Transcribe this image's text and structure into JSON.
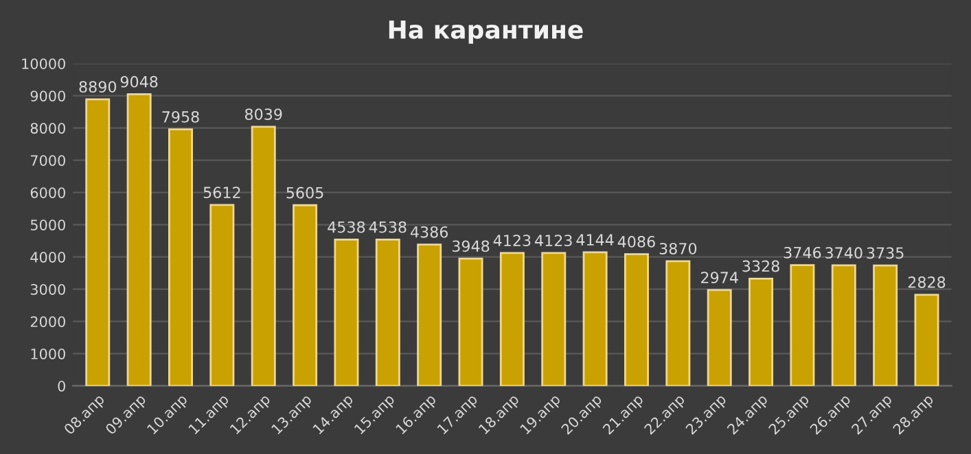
{
  "chart_data": {
    "type": "bar",
    "title": "На карантине",
    "categories": [
      "08.апр",
      "09.апр",
      "10.апр",
      "11.апр",
      "12.апр",
      "13.апр",
      "14.апр",
      "15.апр",
      "16.апр",
      "17.апр",
      "18.апр",
      "19.апр",
      "20.апр",
      "21.апр",
      "22.апр",
      "23.апр",
      "24.апр",
      "25.апр",
      "26.апр",
      "27.апр",
      "28.апр"
    ],
    "values": [
      8890,
      9048,
      7958,
      5612,
      8039,
      5605,
      4538,
      4538,
      4386,
      3948,
      4123,
      4123,
      4144,
      4086,
      3870,
      2974,
      3328,
      3746,
      3740,
      3735,
      2828
    ],
    "color": "#c9a100",
    "ylim": [
      0,
      10000
    ],
    "yticks": [
      0,
      1000,
      2000,
      3000,
      4000,
      5000,
      6000,
      7000,
      8000,
      9000,
      10000
    ],
    "grid": "y",
    "data_labels": true
  }
}
